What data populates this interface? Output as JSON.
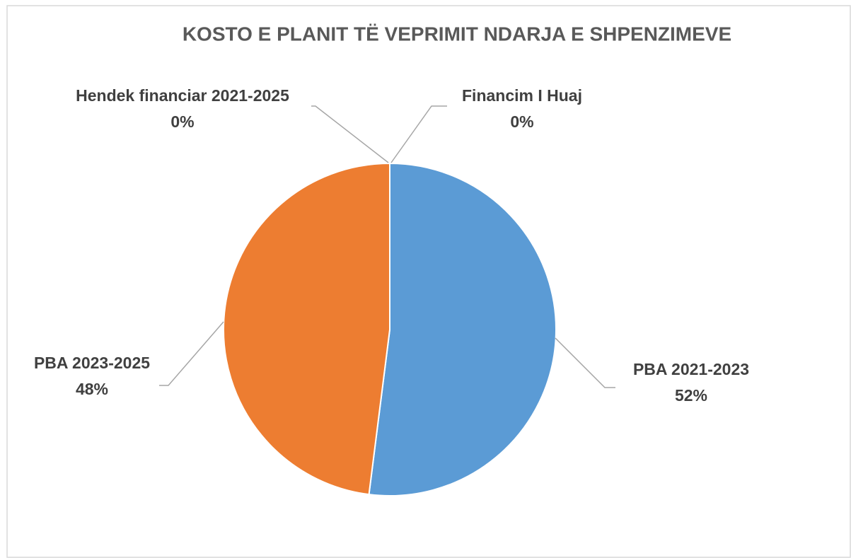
{
  "chart_data": {
    "type": "pie",
    "title": "KOSTO E PLANIT TË VEPRIMIT NDARJA E SHPENZIMEVE",
    "categories": [
      "Financim I Huaj",
      "PBA 2021-2023",
      "PBA 2023-2025",
      "Hendek financiar 2021-2025"
    ],
    "values": [
      0,
      52,
      48,
      0
    ],
    "value_labels": [
      "0%",
      "52%",
      "48%",
      "0%"
    ],
    "colors": [
      "#a5a5a5",
      "#5b9bd5",
      "#ed7d31",
      "#ffc000"
    ]
  }
}
